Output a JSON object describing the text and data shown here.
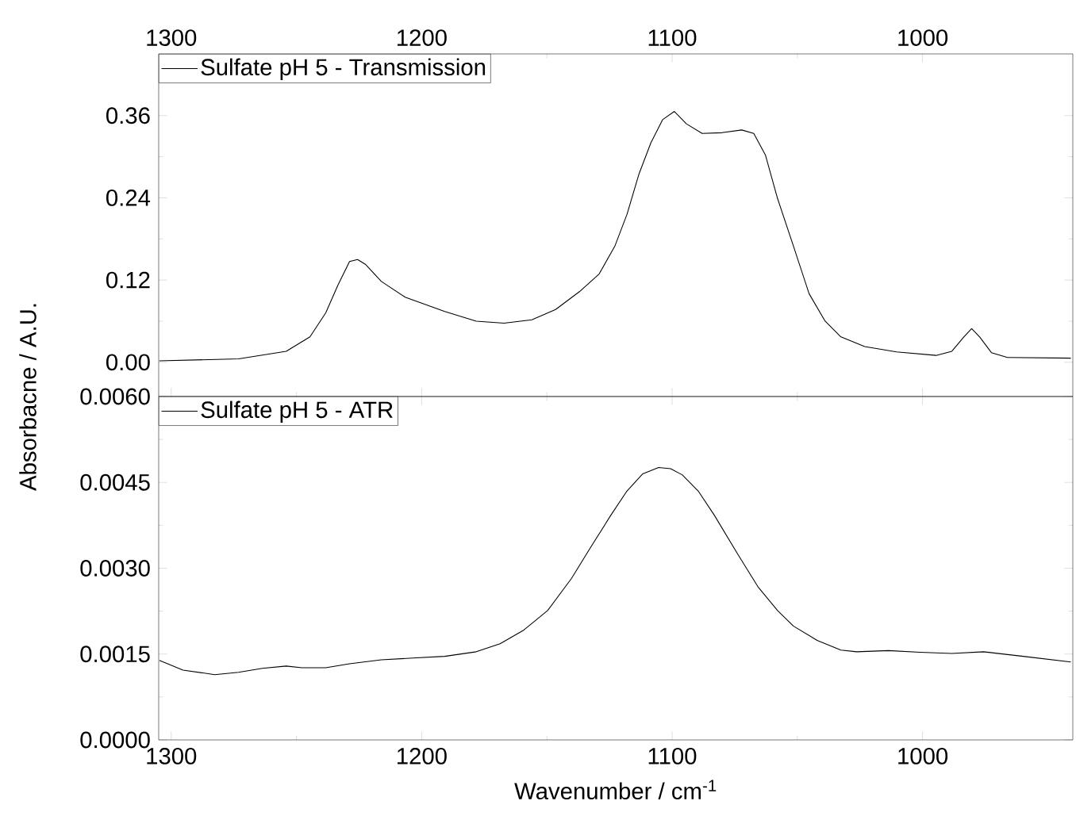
{
  "chart_data": [
    {
      "type": "line",
      "ylabel": "Absorbacne / A.U.",
      "xlim": [
        1305,
        940
      ],
      "xticks": [
        1300,
        1200,
        1100,
        1000
      ],
      "ylim": [
        -0.05,
        0.45
      ],
      "yticks": [
        {
          "value": 0,
          "label": "0.00"
        },
        {
          "value": 0.12,
          "label": "0.12"
        },
        {
          "value": 0.24,
          "label": "0.24"
        },
        {
          "value": 0.36,
          "label": "0.36"
        }
      ],
      "legend": "top left",
      "line_style": "solid",
      "marker": "none",
      "series": [
        {
          "name": "Sulfate pH 5 - Transmission",
          "color": "#000000",
          "x": [
            1304.7,
            1273.1,
            1254.1,
            1244.6,
            1238.3,
            1233.5,
            1228.8,
            1225.6,
            1222.5,
            1216.1,
            1206.6,
            1190.8,
            1178.2,
            1167.1,
            1156.0,
            1146.5,
            1137.0,
            1129.1,
            1122.8,
            1118.0,
            1113.3,
            1108.5,
            1103.8,
            1099.1,
            1094.3,
            1088.0,
            1080.1,
            1072.2,
            1067.4,
            1062.7,
            1057.9,
            1051.6,
            1045.3,
            1038.9,
            1032.6,
            1023.1,
            1010.4,
            994.6,
            988.3,
            983.5,
            980.4,
            977.2,
            972.5,
            966.1,
            940.8
          ],
          "values": [
            0.002,
            0.005,
            0.016,
            0.037,
            0.072,
            0.112,
            0.147,
            0.15,
            0.143,
            0.118,
            0.095,
            0.074,
            0.06,
            0.057,
            0.062,
            0.077,
            0.103,
            0.129,
            0.17,
            0.216,
            0.274,
            0.32,
            0.354,
            0.366,
            0.348,
            0.334,
            0.335,
            0.339,
            0.334,
            0.302,
            0.239,
            0.17,
            0.1,
            0.06,
            0.037,
            0.023,
            0.015,
            0.01,
            0.016,
            0.037,
            0.049,
            0.037,
            0.014,
            0.007,
            0.006
          ]
        }
      ]
    },
    {
      "type": "line",
      "xlabel": "Wavenumber / cm$^{-1}$",
      "xlim": [
        1305,
        940
      ],
      "xticks": [
        1300,
        1200,
        1100,
        1000
      ],
      "ylim": [
        0,
        0.006
      ],
      "yticks": [
        {
          "value": 0,
          "label": "0.0000"
        },
        {
          "value": 0.0015,
          "label": "0.0015"
        },
        {
          "value": 0.003,
          "label": "0.0030"
        },
        {
          "value": 0.0045,
          "label": "0.0045"
        },
        {
          "value": 0.006,
          "label": "0.0060"
        }
      ],
      "legend": "top left",
      "line_style": "solid",
      "marker": "none",
      "series": [
        {
          "name": "Sulfate pH 5 - ATR",
          "color": "#000000",
          "x": [
            1304.7,
            1295.3,
            1282.6,
            1273.1,
            1263.6,
            1254.1,
            1247.8,
            1238.3,
            1228.8,
            1216.1,
            1203.5,
            1190.8,
            1178.2,
            1168.7,
            1159.2,
            1149.7,
            1140.2,
            1132.3,
            1124.4,
            1118.0,
            1111.7,
            1105.4,
            1100.6,
            1095.9,
            1089.6,
            1083.2,
            1073.7,
            1065.8,
            1057.9,
            1051.6,
            1042.1,
            1032.6,
            1026.3,
            1013.6,
            1001.0,
            988.3,
            975.6,
            959.8,
            940.8
          ],
          "values": [
            0.00139,
            0.00122,
            0.00114,
            0.00118,
            0.00125,
            0.00129,
            0.00126,
            0.00126,
            0.00133,
            0.0014,
            0.00143,
            0.00146,
            0.00154,
            0.00168,
            0.00192,
            0.00226,
            0.00282,
            0.00338,
            0.00393,
            0.00435,
            0.00465,
            0.00476,
            0.00474,
            0.00463,
            0.00435,
            0.00393,
            0.00324,
            0.00268,
            0.00226,
            0.00199,
            0.00174,
            0.00157,
            0.00154,
            0.00156,
            0.00153,
            0.00151,
            0.00154,
            0.00146,
            0.00136
          ]
        }
      ]
    }
  ]
}
